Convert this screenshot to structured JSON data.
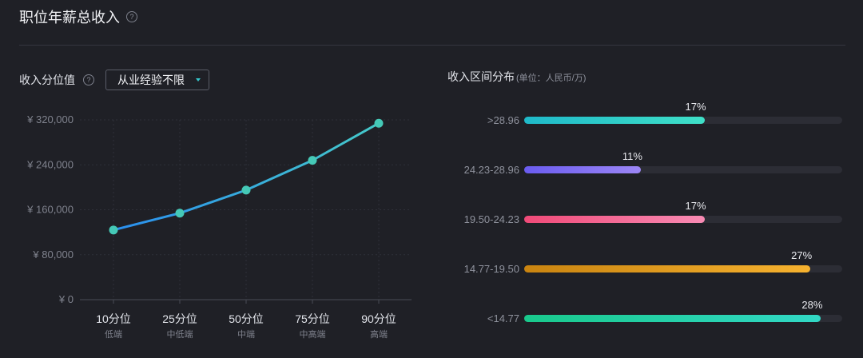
{
  "header": {
    "title": "职位年薪总收入",
    "help_glyph": "?"
  },
  "left": {
    "label": "收入分位值",
    "help_glyph": "?",
    "dropdown_value": "从业经验不限"
  },
  "right": {
    "title": "收入区间分布",
    "unit": "(单位：人民币/万)"
  },
  "chart_data": [
    {
      "type": "line",
      "categories": [
        "10分位",
        "25分位",
        "50分位",
        "75分位",
        "90分位"
      ],
      "category_sublabels": [
        "低端",
        "中低端",
        "中端",
        "中高端",
        "高端"
      ],
      "values": [
        124000,
        154000,
        195000,
        248000,
        314000
      ],
      "yticks": [
        "¥ 320,000",
        "¥ 240,000",
        "¥ 160,000",
        "¥ 80,000",
        "¥ 0"
      ],
      "ylim": [
        0,
        320000
      ],
      "grid": true,
      "line_color_start": "#2a8ff0",
      "line_color_end": "#45c9c9",
      "marker_color": "#45c9b7"
    },
    {
      "type": "bar",
      "orientation": "horizontal",
      "categories": [
        ">28.96",
        "24.23-28.96",
        "19.50-24.23",
        "14.77-19.50",
        "<14.77"
      ],
      "values": [
        17,
        11,
        17,
        27,
        28
      ],
      "value_labels": [
        "17%",
        "11%",
        "17%",
        "27%",
        "28%"
      ],
      "xlim": [
        0,
        30
      ],
      "colors": [
        [
          "#1fb9c9",
          "#3fe0c8"
        ],
        [
          "#6a5cf0",
          "#9c86f5"
        ],
        [
          "#f04a78",
          "#f88bb4"
        ],
        [
          "#c98410",
          "#f6b22f"
        ],
        [
          "#19c98c",
          "#32d8c6"
        ]
      ]
    }
  ]
}
